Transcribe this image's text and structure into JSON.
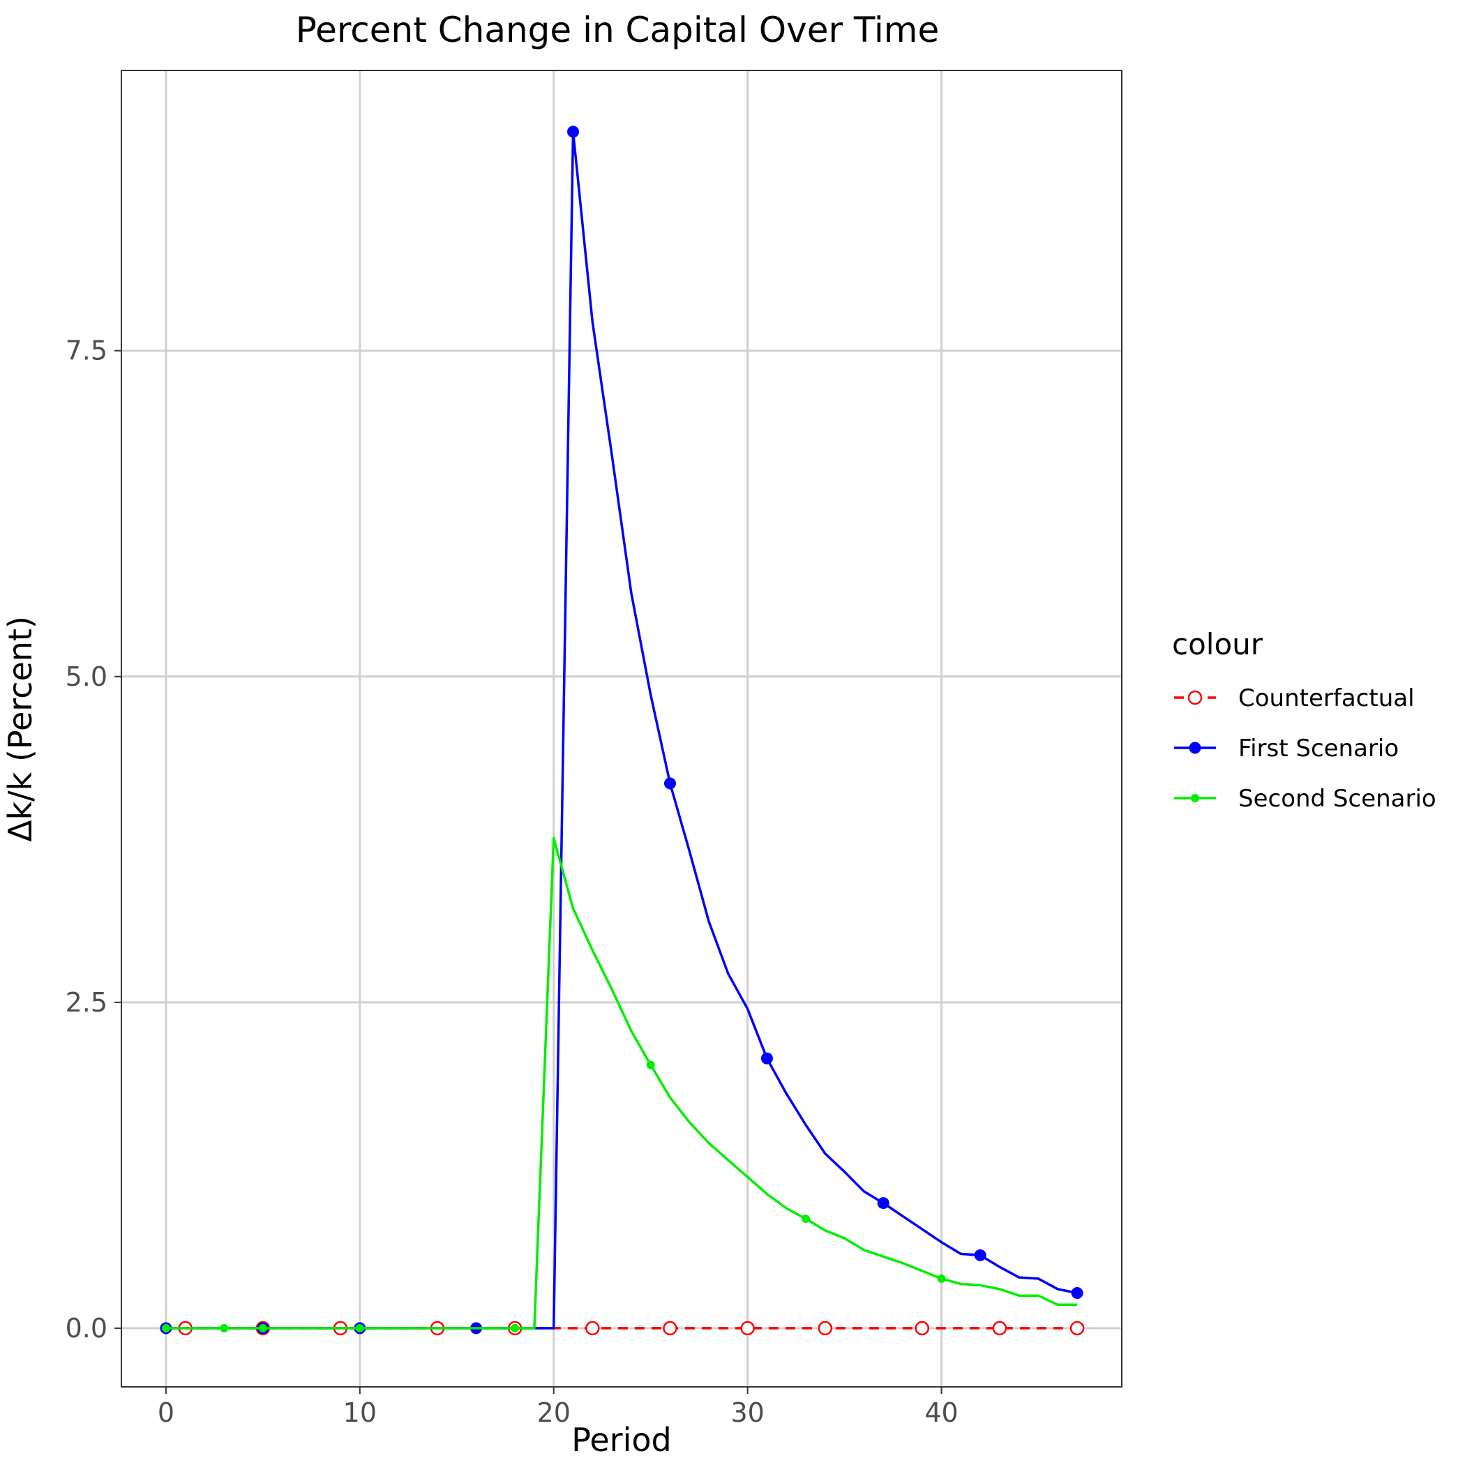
{
  "chart_data": {
    "type": "line",
    "title": "Percent Change in Capital Over Time",
    "xlabel": "Period",
    "ylabel": "Δk/k (Percent)",
    "xlim": [
      -2.3,
      49.3
    ],
    "ylim": [
      -0.45,
      9.65
    ],
    "xticks": [
      0,
      10,
      20,
      30,
      40
    ],
    "yticks": [
      0.0,
      2.5,
      5.0,
      7.5
    ],
    "xtick_labels": [
      "0",
      "10",
      "20",
      "30",
      "40"
    ],
    "ytick_labels": [
      "0.0",
      "2.5",
      "5.0",
      "7.5"
    ],
    "grid": true,
    "legend": {
      "title": "colour",
      "position": "right"
    },
    "series": [
      {
        "name": "Counterfactual",
        "color": "#ff0000",
        "line": "dashed",
        "marker": "open-circle",
        "x": [
          0,
          1,
          2,
          3,
          4,
          5,
          6,
          7,
          8,
          9,
          10,
          11,
          12,
          13,
          14,
          15,
          16,
          17,
          18,
          19,
          20,
          21,
          22,
          23,
          24,
          25,
          26,
          27,
          28,
          29,
          30,
          31,
          32,
          33,
          34,
          35,
          36,
          37,
          38,
          39,
          40,
          41,
          42,
          43,
          44,
          45,
          46,
          47
        ],
        "y": [
          0,
          0,
          0,
          0,
          0,
          0,
          0,
          0,
          0,
          0,
          0,
          0,
          0,
          0,
          0,
          0,
          0,
          0,
          0,
          0,
          0,
          0,
          0,
          0,
          0,
          0,
          0,
          0,
          0,
          0,
          0,
          0,
          0,
          0,
          0,
          0,
          0,
          0,
          0,
          0,
          0,
          0,
          0,
          0,
          0,
          0,
          0,
          0
        ],
        "marker_x": [
          1,
          5,
          9,
          14,
          18,
          22,
          26,
          30,
          34,
          39,
          43,
          47
        ]
      },
      {
        "name": "First Scenario",
        "color": "#0000ff",
        "line": "solid",
        "marker": "filled-circle",
        "x": [
          0,
          1,
          2,
          3,
          4,
          5,
          6,
          7,
          8,
          9,
          10,
          11,
          12,
          13,
          14,
          15,
          16,
          17,
          18,
          19,
          20,
          21,
          22,
          23,
          24,
          25,
          26,
          27,
          28,
          29,
          30,
          31,
          32,
          33,
          34,
          35,
          36,
          37,
          38,
          39,
          40,
          41,
          42,
          43,
          44,
          45,
          46,
          47
        ],
        "y": [
          0,
          0,
          0,
          0,
          0,
          0,
          0,
          0,
          0,
          0,
          0,
          0,
          0,
          0,
          0,
          0,
          0,
          0,
          0,
          0,
          0,
          9.18,
          7.72,
          6.7,
          5.64,
          4.86,
          4.18,
          3.66,
          3.12,
          2.72,
          2.45,
          2.07,
          1.8,
          1.56,
          1.34,
          1.2,
          1.05,
          0.96,
          0.86,
          0.76,
          0.66,
          0.57,
          0.56,
          0.47,
          0.39,
          0.38,
          0.3,
          0.27
        ],
        "marker_x": [
          0,
          5,
          10,
          16,
          21,
          26,
          31,
          37,
          42,
          47
        ]
      },
      {
        "name": "Second Scenario",
        "color": "#00ee00",
        "line": "solid",
        "marker": "small-filled-circle",
        "x": [
          0,
          1,
          2,
          3,
          4,
          5,
          6,
          7,
          8,
          9,
          10,
          11,
          12,
          13,
          14,
          15,
          16,
          17,
          18,
          19,
          20,
          21,
          22,
          23,
          24,
          25,
          26,
          27,
          28,
          29,
          30,
          31,
          32,
          33,
          34,
          35,
          36,
          37,
          38,
          39,
          40,
          41,
          42,
          43,
          44,
          45,
          46,
          47
        ],
        "y": [
          0,
          0,
          0,
          0,
          0,
          0,
          0,
          0,
          0,
          0,
          0,
          0,
          0,
          0,
          0,
          0,
          0,
          0,
          0,
          0,
          3.76,
          3.22,
          2.9,
          2.6,
          2.28,
          2.02,
          1.77,
          1.58,
          1.42,
          1.29,
          1.16,
          1.03,
          0.92,
          0.84,
          0.75,
          0.69,
          0.6,
          0.55,
          0.5,
          0.44,
          0.38,
          0.34,
          0.33,
          0.3,
          0.25,
          0.25,
          0.18,
          0.18
        ],
        "marker_x": [
          0,
          3,
          5,
          10,
          18,
          25,
          33,
          40
        ]
      }
    ]
  }
}
